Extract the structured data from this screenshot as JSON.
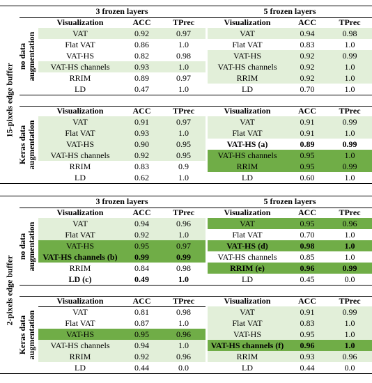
{
  "fills": {
    "light": "#e2efd9",
    "dark": "#70ad47"
  },
  "blocks": [
    {
      "label": "15-pixels edge buffer",
      "columns": [
        "3 frozen layers",
        "5 frozen layers"
      ],
      "groups": [
        {
          "label": "no data augmentation",
          "tables": [
            {
              "header": [
                "Visualization",
                "ACC",
                "TPrec"
              ],
              "rows": [
                {
                  "cells": [
                    "VAT",
                    "0.92",
                    "0.97"
                  ],
                  "fill": "light"
                },
                {
                  "cells": [
                    "Flat VAT",
                    "0.86",
                    "1.0"
                  ]
                },
                {
                  "cells": [
                    "VAT-HS",
                    "0.82",
                    "0.98"
                  ]
                },
                {
                  "cells": [
                    "VAT-HS channels",
                    "0.93",
                    "1.0"
                  ],
                  "fill": "light"
                },
                {
                  "cells": [
                    "RRIM",
                    "0.89",
                    "0.97"
                  ]
                },
                {
                  "cells": [
                    "LD",
                    "0.47",
                    "1.0"
                  ]
                }
              ]
            },
            {
              "header": [
                "Visualization",
                "ACC",
                "TPrec"
              ],
              "rows": [
                {
                  "cells": [
                    "VAT",
                    "0.94",
                    "0.98"
                  ],
                  "fill": "light"
                },
                {
                  "cells": [
                    "Flat VAT",
                    "0.83",
                    "1.0"
                  ]
                },
                {
                  "cells": [
                    "VAT-HS",
                    "0.92",
                    "0.99"
                  ],
                  "fill": "light"
                },
                {
                  "cells": [
                    "VAT-HS channels",
                    "0.92",
                    "1.0"
                  ],
                  "fill": "light"
                },
                {
                  "cells": [
                    "RRIM",
                    "0.92",
                    "1.0"
                  ],
                  "fill": "light"
                },
                {
                  "cells": [
                    "LD",
                    "0.70",
                    "1.0"
                  ]
                }
              ]
            }
          ]
        },
        {
          "label": "Keras data augmentation",
          "tables": [
            {
              "header": [
                "Visualization",
                "ACC",
                "TPrec"
              ],
              "rows": [
                {
                  "cells": [
                    "VAT",
                    "0.91",
                    "0.97"
                  ],
                  "fill": "light"
                },
                {
                  "cells": [
                    "Flat VAT",
                    "0.93",
                    "1.0"
                  ],
                  "fill": "light"
                },
                {
                  "cells": [
                    "VAT-HS",
                    "0.90",
                    "0.95"
                  ],
                  "fill": "light"
                },
                {
                  "cells": [
                    "VAT-HS channels",
                    "0.92",
                    "0.95"
                  ],
                  "fill": "light"
                },
                {
                  "cells": [
                    "RRIM",
                    "0.83",
                    "0.9"
                  ]
                },
                {
                  "cells": [
                    "LD",
                    "0.62",
                    "1.0"
                  ]
                }
              ]
            },
            {
              "header": [
                "Visualization",
                "ACC",
                "TPrec"
              ],
              "rows": [
                {
                  "cells": [
                    "VAT",
                    "0.91",
                    "0.99"
                  ],
                  "fill": "light"
                },
                {
                  "cells": [
                    "Flat VAT",
                    "0.91",
                    "1.0"
                  ],
                  "fill": "light"
                },
                {
                  "cells": [
                    "VAT-HS (a)",
                    "0.89",
                    "0.99"
                  ],
                  "bold": true
                },
                {
                  "cells": [
                    "VAT-HS channels",
                    "0.95",
                    "1.0"
                  ],
                  "fill": "dark"
                },
                {
                  "cells": [
                    "RRIM",
                    "0.95",
                    "0.99"
                  ],
                  "fill": "dark"
                },
                {
                  "cells": [
                    "LD",
                    "0.60",
                    "1.0"
                  ]
                }
              ]
            }
          ]
        }
      ]
    },
    {
      "label": "2-pixels edge buffer",
      "columns": [
        "3 frozen layers",
        "5 frozen layers"
      ],
      "groups": [
        {
          "label": "no data augmentation",
          "tables": [
            {
              "header": [
                "Visualization",
                "ACC",
                "TPrec"
              ],
              "rows": [
                {
                  "cells": [
                    "VAT",
                    "0.94",
                    "0.96"
                  ],
                  "fill": "light"
                },
                {
                  "cells": [
                    "Flat VAT",
                    "0.92",
                    "1.0"
                  ],
                  "fill": "light"
                },
                {
                  "cells": [
                    "VAT-HS",
                    "0.95",
                    "0.97"
                  ],
                  "fill": "dark"
                },
                {
                  "cells": [
                    "VAT-HS channels (b)",
                    "0.99",
                    "0.99"
                  ],
                  "fill": "dark",
                  "bold": true
                },
                {
                  "cells": [
                    "RRIM",
                    "0.84",
                    "0.98"
                  ]
                },
                {
                  "cells": [
                    "LD (c)",
                    "0.49",
                    "1.0"
                  ],
                  "bold": true
                }
              ]
            },
            {
              "header": [
                "Visualization",
                "ACC",
                "TPrec"
              ],
              "rows": [
                {
                  "cells": [
                    "VAT",
                    "0.95",
                    "0.96"
                  ],
                  "fill": "dark"
                },
                {
                  "cells": [
                    "Flat VAT",
                    "0.70",
                    "1.0"
                  ]
                },
                {
                  "cells": [
                    "VAT-HS (d)",
                    "0.98",
                    "1.0"
                  ],
                  "fill": "dark",
                  "bold": true
                },
                {
                  "cells": [
                    "VAT-HS channels",
                    "0.85",
                    "1.0"
                  ]
                },
                {
                  "cells": [
                    "RRIM (e)",
                    "0.96",
                    "0.99"
                  ],
                  "fill": "dark",
                  "bold": true
                },
                {
                  "cells": [
                    "LD",
                    "0.45",
                    "0.0"
                  ]
                }
              ]
            }
          ]
        },
        {
          "label": "Keras data augmentation",
          "tables": [
            {
              "header": [
                "Visualization",
                "ACC",
                "TPrec"
              ],
              "rows": [
                {
                  "cells": [
                    "VAT",
                    "0.81",
                    "0.98"
                  ]
                },
                {
                  "cells": [
                    "Flat VAT",
                    "0.87",
                    "1.0"
                  ]
                },
                {
                  "cells": [
                    "VAT-HS",
                    "0.95",
                    "0.96"
                  ],
                  "fill": "dark"
                },
                {
                  "cells": [
                    "VAT-HS channels",
                    "0.94",
                    "1.0"
                  ],
                  "fill": "light"
                },
                {
                  "cells": [
                    "RRIM",
                    "0.92",
                    "0.96"
                  ],
                  "fill": "light"
                },
                {
                  "cells": [
                    "LD",
                    "0.44",
                    "0.0"
                  ]
                }
              ]
            },
            {
              "header": [
                "Visualization",
                "ACC",
                "TPrec"
              ],
              "rows": [
                {
                  "cells": [
                    "VAT",
                    "0.91",
                    "0.99"
                  ],
                  "fill": "light"
                },
                {
                  "cells": [
                    "Flat VAT",
                    "0.83",
                    "1.0"
                  ],
                  "fill": "light"
                },
                {
                  "cells": [
                    "VAT-HS",
                    "0.95",
                    "1.0"
                  ],
                  "fill": "light"
                },
                {
                  "cells": [
                    "VAT-HS channels (f)",
                    "0.96",
                    "1.0"
                  ],
                  "fill": "dark",
                  "bold": true
                },
                {
                  "cells": [
                    "RRIM",
                    "0.93",
                    "0.96"
                  ],
                  "fill": "light"
                },
                {
                  "cells": [
                    "LD",
                    "0.44",
                    "0.0"
                  ]
                }
              ]
            }
          ]
        }
      ]
    }
  ]
}
